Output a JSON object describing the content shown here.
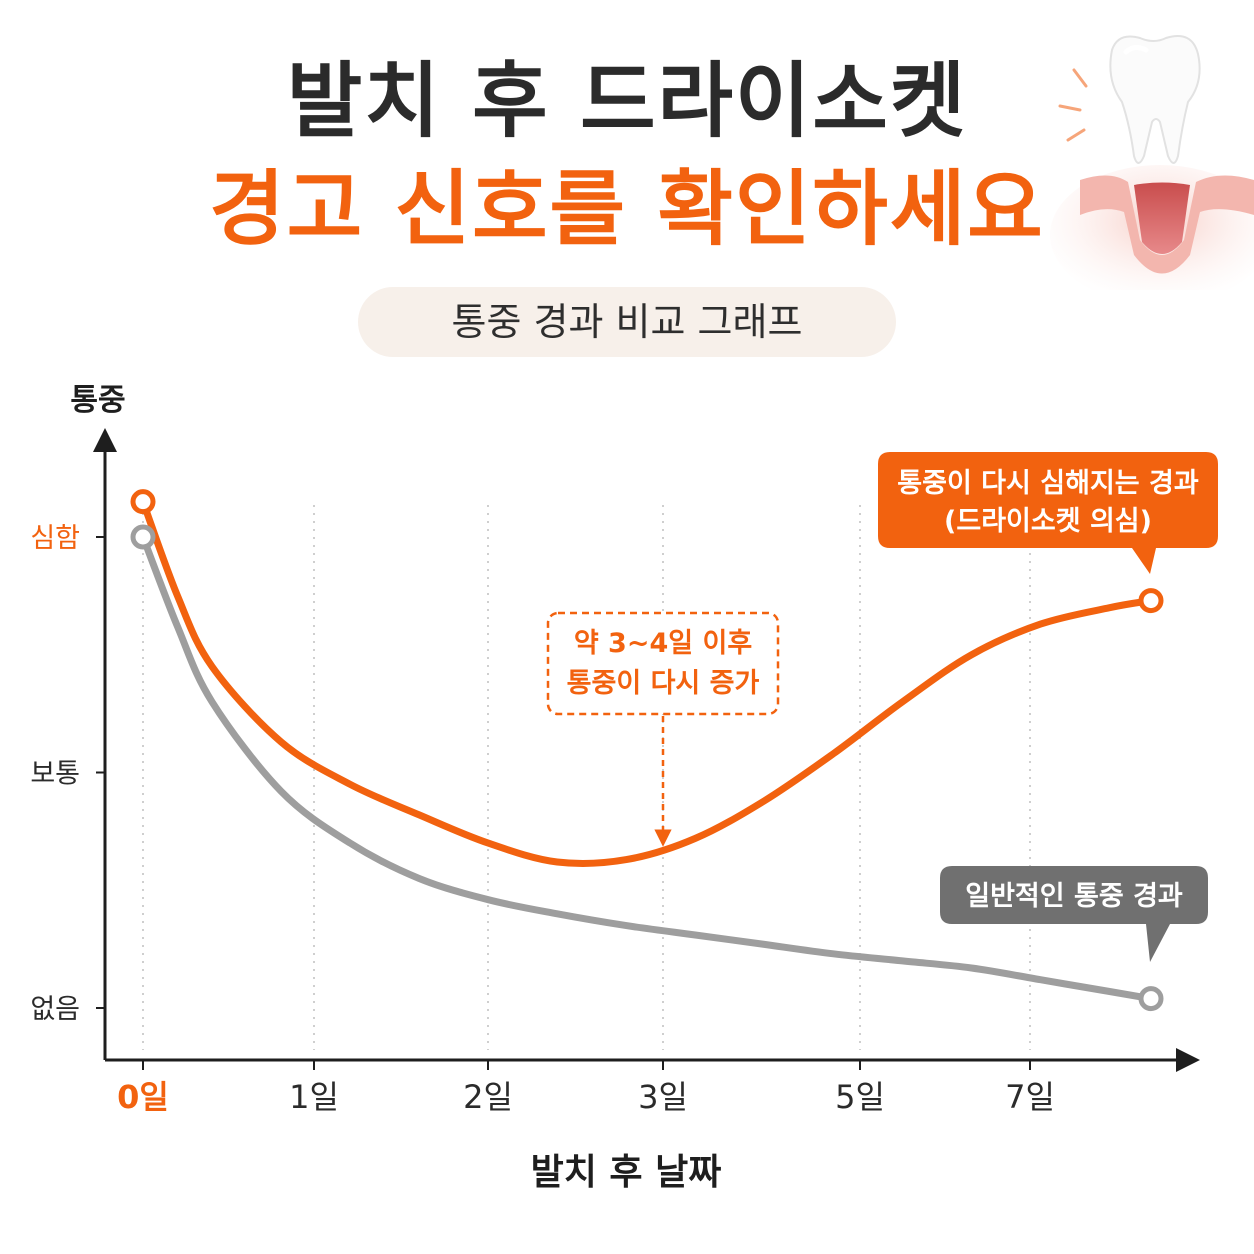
{
  "header": {
    "title_line1": "발치 후 드라이소켓",
    "title_line2": "경고 신호를 확인하세요",
    "subtitle": "통중 경과 비교 그래프"
  },
  "colors": {
    "accent": "#f2620f",
    "normal": "#9e9e9e",
    "text": "#2b2b2b"
  },
  "chart_data": {
    "type": "line",
    "xlabel": "발치 후 날짜",
    "ylabel": "통중",
    "x_ticks": [
      "0일",
      "1일",
      "2일",
      "3일",
      "5일",
      "7일"
    ],
    "y_ticks": [
      "없음",
      "보통",
      "심함"
    ],
    "ylim": [
      0,
      2
    ],
    "grid": "vertical dotted",
    "series": [
      {
        "name": "통중이 다시 심해지는 경과 (드라이소켓 의심)",
        "label_line1": "통중이 다시 심해지는 경과",
        "label_line2": "(드라이소켓 의심)",
        "color": "#f2620f",
        "x": [
          0,
          0.25,
          0.5,
          1,
          1.5,
          2,
          2.5,
          3,
          3.5,
          4,
          4.5,
          5,
          5.5,
          6,
          6.5,
          7,
          7.3
        ],
        "y": [
          2.15,
          1.75,
          1.45,
          1.13,
          0.95,
          0.82,
          0.7,
          0.62,
          0.63,
          0.72,
          0.88,
          1.08,
          1.3,
          1.5,
          1.63,
          1.7,
          1.73
        ]
      },
      {
        "name": "일반적인 통중 경과",
        "label_line1": "일반적인 통중 경과",
        "color": "#9e9e9e",
        "x": [
          0,
          0.25,
          0.5,
          1,
          1.5,
          2,
          2.5,
          3,
          3.5,
          4,
          4.5,
          5,
          5.5,
          6,
          6.5,
          7,
          7.3
        ],
        "y": [
          2.0,
          1.62,
          1.3,
          0.92,
          0.7,
          0.55,
          0.46,
          0.4,
          0.35,
          0.31,
          0.27,
          0.23,
          0.2,
          0.17,
          0.12,
          0.07,
          0.04
        ]
      }
    ],
    "annotation": {
      "line1": "약 3~4일 이후",
      "line2": "통중이 다시 증가",
      "points_to_x": 3
    }
  }
}
